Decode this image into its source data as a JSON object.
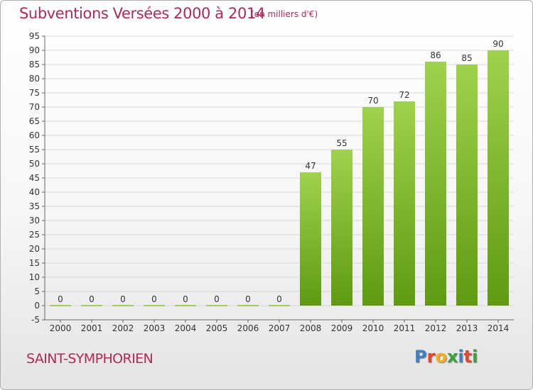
{
  "header": {
    "title": "Subventions Versées 2000 à 2014",
    "subtitle": "(en milliers d'€)"
  },
  "footer": {
    "commune": "SAINT-SYMPHORIEN",
    "logo_letters": [
      "P",
      "r",
      "o",
      "x",
      "i",
      "t",
      "i"
    ],
    "logo_colors": [
      "#3f7fc7",
      "#e8452b",
      "#f2b01e",
      "#39a33a",
      "#3f7fc7",
      "#e8452b",
      "#39a33a"
    ]
  },
  "colors": {
    "bar_top": "#9fd24c",
    "bar_bottom": "#5f9a12",
    "grid": "#d8d8d8",
    "axis": "#666666"
  },
  "chart_data": {
    "type": "bar",
    "categories": [
      "2000",
      "2001",
      "2002",
      "2003",
      "2004",
      "2005",
      "2006",
      "2007",
      "2008",
      "2009",
      "2010",
      "2011",
      "2012",
      "2013",
      "2014"
    ],
    "values": [
      0,
      0,
      0,
      0,
      0,
      0,
      0,
      0,
      47,
      55,
      70,
      72,
      86,
      85,
      90
    ],
    "data_labels": [
      "0",
      "0",
      "0",
      "0",
      "0",
      "0",
      "0",
      "0",
      "47",
      "55",
      "70",
      "72",
      "86",
      "85",
      "90"
    ],
    "ylim": [
      -5,
      95
    ],
    "yticks": [
      -5,
      0,
      5,
      10,
      15,
      20,
      25,
      30,
      35,
      40,
      45,
      50,
      55,
      60,
      65,
      70,
      75,
      80,
      85,
      90,
      95
    ],
    "grid": true,
    "legend": "none"
  }
}
